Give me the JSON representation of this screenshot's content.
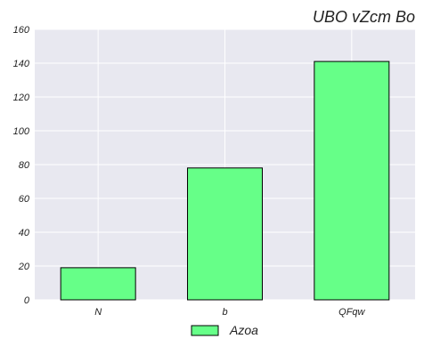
{
  "chart_data": {
    "type": "bar",
    "title": "UBO  vZcm Bo",
    "xlabel": "",
    "ylabel": "",
    "categories": [
      "N",
      "b",
      "QFqw"
    ],
    "series": [
      {
        "name": "Azoa",
        "values": [
          19,
          78,
          141
        ]
      }
    ],
    "ylim": [
      0,
      160
    ],
    "yticks": [
      0,
      20,
      40,
      60,
      80,
      100,
      120,
      140,
      160
    ],
    "grid": true,
    "legend_position": "bottom-center",
    "colors": {
      "bar_fill": "#66ff88",
      "bar_edge": "#000000",
      "plot_background": "#e8e8f0",
      "grid": "#ffffff"
    }
  }
}
